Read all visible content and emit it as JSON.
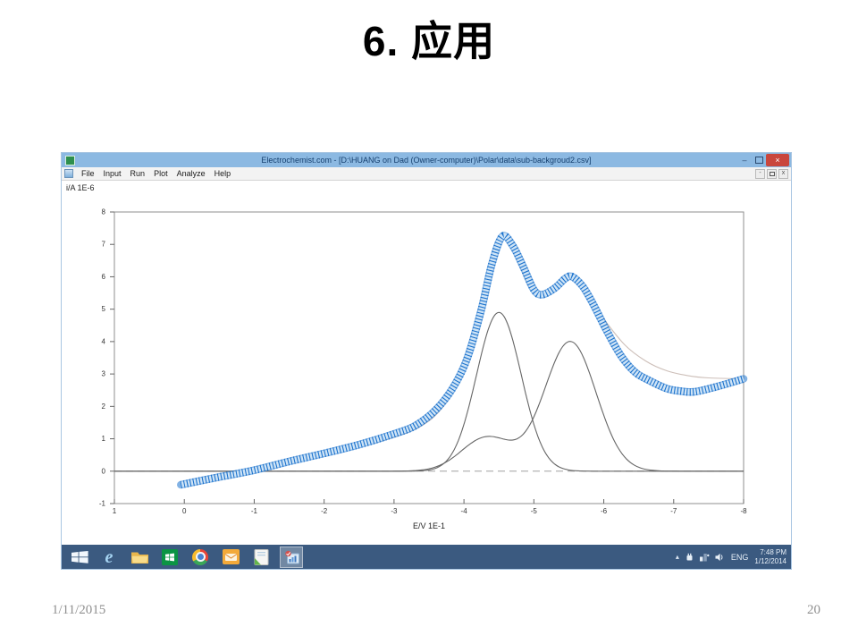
{
  "slide": {
    "title": "6. 应用",
    "footer_date": "1/11/2015",
    "page_number": "20"
  },
  "window": {
    "title": "Electrochemist.com - [D:\\HUANG on Dad (Owner-computer)\\Polar\\data\\sub-backgroud2.csv]",
    "menu": [
      "File",
      "Input",
      "Run",
      "Plot",
      "Analyze",
      "Help"
    ],
    "mdi_controls": [
      "minimize",
      "restore",
      "close"
    ]
  },
  "icons": {
    "minimize_glyph": "–",
    "close_glyph": "×",
    "mdi_minimize_glyph": "-",
    "mdi_close_glyph": "x",
    "tray_expand_glyph": "▴"
  },
  "colors": {
    "frame_border": "#a9c6e2",
    "titlebar_bg": "#8cb9e2",
    "titlebar_text": "#16406f",
    "close_button": "#c9463d",
    "taskbar_bg": "#3b5a80",
    "taskbar_active_bg": "rgba(255,255,255,0.28)"
  },
  "chart_data": {
    "type": "line",
    "title": "",
    "xlabel": "E/V 1E-1",
    "ylabel": "i/A 1E-6",
    "xlim": [
      1,
      -8
    ],
    "ylim": [
      -1,
      8
    ],
    "x_ticks": [
      1,
      0,
      -1,
      -2,
      -3,
      -4,
      -5,
      -6,
      -7,
      -8
    ],
    "y_ticks": [
      8,
      7,
      6,
      5,
      4,
      3,
      2,
      1,
      0,
      -1
    ],
    "grid": false,
    "axis_color": "#8f8f8f",
    "baseline": {
      "y": 0,
      "color": "#a0a0a0",
      "dash": "8 5"
    },
    "series": [
      {
        "name": "component-peak-1",
        "color": "#666666",
        "style": "thin",
        "gaussians": [
          {
            "center": -4.5,
            "amp": 4.9,
            "sigma": 0.32
          }
        ]
      },
      {
        "name": "component-peak-2",
        "color": "#666666",
        "style": "thin",
        "gaussians": [
          {
            "center": -5.52,
            "amp": 4.0,
            "sigma": 0.37
          },
          {
            "center": -4.33,
            "amp": 1.05,
            "sigma": 0.36
          }
        ]
      },
      {
        "name": "total-fit",
        "color": "#cdbfb9",
        "style": "thin",
        "points": [
          [
            0.05,
            -0.45
          ],
          [
            -1,
            0.0
          ],
          [
            -2,
            0.5
          ],
          [
            -3,
            1.05
          ],
          [
            -3.5,
            1.55
          ],
          [
            -3.8,
            2.3
          ],
          [
            -4.0,
            3.1
          ],
          [
            -4.15,
            4.1
          ],
          [
            -4.3,
            5.4
          ],
          [
            -4.45,
            6.8
          ],
          [
            -4.55,
            7.2
          ],
          [
            -4.65,
            7.05
          ],
          [
            -4.8,
            6.35
          ],
          [
            -4.95,
            5.65
          ],
          [
            -5.1,
            5.4
          ],
          [
            -5.3,
            5.65
          ],
          [
            -5.45,
            5.9
          ],
          [
            -5.55,
            5.95
          ],
          [
            -5.7,
            5.65
          ],
          [
            -5.85,
            5.2
          ],
          [
            -6.0,
            4.7
          ],
          [
            -6.3,
            3.9
          ],
          [
            -6.6,
            3.4
          ],
          [
            -6.9,
            3.1
          ],
          [
            -7.2,
            2.95
          ],
          [
            -7.5,
            2.88
          ],
          [
            -8,
            2.85
          ]
        ]
      },
      {
        "name": "measured-data",
        "color": "#1b72cd",
        "fill": "#cfe4f6",
        "style": "thick-band",
        "points": [
          [
            0.05,
            -0.42
          ],
          [
            -0.5,
            -0.18
          ],
          [
            -1,
            0.03
          ],
          [
            -1.5,
            0.3
          ],
          [
            -2,
            0.55
          ],
          [
            -2.5,
            0.82
          ],
          [
            -3,
            1.15
          ],
          [
            -3.3,
            1.4
          ],
          [
            -3.6,
            1.9
          ],
          [
            -3.85,
            2.6
          ],
          [
            -4.05,
            3.5
          ],
          [
            -4.25,
            5.0
          ],
          [
            -4.4,
            6.4
          ],
          [
            -4.55,
            7.25
          ],
          [
            -4.7,
            6.95
          ],
          [
            -4.85,
            6.3
          ],
          [
            -5.0,
            5.6
          ],
          [
            -5.12,
            5.45
          ],
          [
            -5.3,
            5.65
          ],
          [
            -5.45,
            5.95
          ],
          [
            -5.55,
            6.0
          ],
          [
            -5.7,
            5.7
          ],
          [
            -5.85,
            5.15
          ],
          [
            -6.05,
            4.3
          ],
          [
            -6.25,
            3.55
          ],
          [
            -6.45,
            3.05
          ],
          [
            -6.65,
            2.8
          ],
          [
            -6.9,
            2.55
          ],
          [
            -7.1,
            2.47
          ],
          [
            -7.3,
            2.45
          ],
          [
            -7.6,
            2.6
          ],
          [
            -8,
            2.85
          ]
        ]
      }
    ]
  },
  "taskbar": {
    "apps": [
      {
        "name": "internet-explorer",
        "icon": "ie"
      },
      {
        "name": "file-explorer",
        "icon": "folder"
      },
      {
        "name": "windows-store",
        "icon": "store"
      },
      {
        "name": "chrome",
        "icon": "chrome"
      },
      {
        "name": "mail-app",
        "icon": "mail"
      },
      {
        "name": "document-app",
        "icon": "docs"
      },
      {
        "name": "electrochemist-app",
        "icon": "electro",
        "active": true
      }
    ],
    "tray": {
      "icons": [
        "power",
        "network",
        "volume"
      ],
      "language": "ENG",
      "time": "7:48 PM",
      "date": "1/12/2014"
    }
  }
}
